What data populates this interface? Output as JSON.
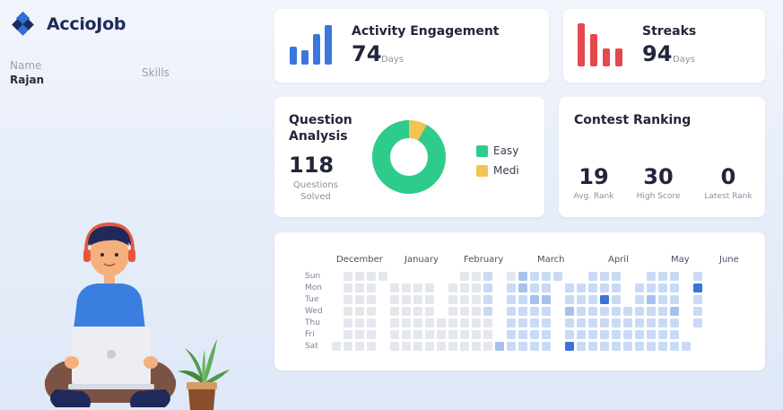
{
  "app": {
    "brand": "AccioJob"
  },
  "profile": {
    "name_label": "Name",
    "name_value": "Rajan",
    "skills_label": "Skills"
  },
  "activity": {
    "title": "Activity Engagement",
    "value": "74",
    "unit": "Days",
    "icon": "bar-chart-icon",
    "color": "#3b76dc"
  },
  "streaks": {
    "title": "Streaks",
    "value": "94",
    "unit": "Days",
    "icon": "bar-chart-icon",
    "color": "#e5484d"
  },
  "question_analysis": {
    "title_line1": "Question",
    "title_line2": "Analysis",
    "solved_value": "118",
    "solved_label_line1": "Questions",
    "solved_label_line2": "Solved",
    "legend": [
      {
        "label": "Easy",
        "color": "#2ecc8c"
      },
      {
        "label": "Medi",
        "color": "#f3c353"
      }
    ],
    "easy_fraction": 0.92
  },
  "contest": {
    "title": "Contest Ranking",
    "stats": [
      {
        "value": "19",
        "label": "Avg. Rank"
      },
      {
        "value": "30",
        "label": "High Score"
      },
      {
        "value": "0",
        "label": "Latest Rank"
      }
    ]
  },
  "heatmap": {
    "months": [
      "December",
      "January",
      "February",
      "March",
      "April",
      "May",
      "June"
    ],
    "days": [
      "Sun",
      "Mon",
      "Tue",
      "Wed",
      "Thu",
      "Fri",
      "Sat"
    ],
    "colors": {
      "empty": "#e4e7ec",
      "light": "#c9daf6",
      "mid": "#a6c1ee",
      "dark": "#3b73d9"
    },
    "columns": [
      [
        null,
        null,
        null,
        null,
        null,
        null,
        0
      ],
      [
        0,
        0,
        0,
        0,
        0,
        0,
        0
      ],
      [
        0,
        0,
        0,
        0,
        0,
        0,
        0
      ],
      [
        0,
        0,
        0,
        0,
        0,
        0,
        0
      ],
      [
        0,
        null,
        null,
        null,
        null,
        null,
        null
      ],
      [
        null,
        0,
        0,
        0,
        0,
        0,
        0
      ],
      [
        null,
        0,
        0,
        0,
        0,
        0,
        0
      ],
      [
        null,
        0,
        0,
        0,
        0,
        0,
        0
      ],
      [
        null,
        0,
        0,
        0,
        0,
        0,
        0
      ],
      [
        null,
        null,
        null,
        null,
        0,
        0,
        0
      ],
      [
        null,
        0,
        0,
        0,
        0,
        0,
        0
      ],
      [
        0,
        0,
        0,
        0,
        0,
        0,
        0
      ],
      [
        0,
        0,
        0,
        0,
        0,
        0,
        0
      ],
      [
        1,
        1,
        1,
        1,
        0,
        0,
        0
      ],
      [
        null,
        null,
        null,
        null,
        null,
        null,
        2
      ],
      [
        0,
        1,
        1,
        1,
        1,
        1,
        1
      ],
      [
        2,
        2,
        1,
        1,
        1,
        1,
        1
      ],
      [
        1,
        1,
        2,
        1,
        1,
        1,
        1
      ],
      [
        1,
        1,
        2,
        1,
        1,
        1,
        1
      ],
      [
        1,
        null,
        null,
        null,
        null,
        null,
        null
      ],
      [
        null,
        1,
        1,
        2,
        1,
        1,
        3
      ],
      [
        null,
        1,
        1,
        1,
        1,
        1,
        1
      ],
      [
        1,
        1,
        1,
        1,
        1,
        1,
        1
      ],
      [
        1,
        1,
        3,
        1,
        1,
        1,
        1
      ],
      [
        1,
        1,
        1,
        1,
        1,
        1,
        1
      ],
      [
        null,
        null,
        null,
        1,
        1,
        1,
        1
      ],
      [
        null,
        1,
        1,
        1,
        1,
        1,
        1
      ],
      [
        1,
        1,
        2,
        1,
        1,
        1,
        1
      ],
      [
        1,
        1,
        1,
        1,
        1,
        1,
        1
      ],
      [
        1,
        1,
        1,
        2,
        1,
        1,
        1
      ],
      [
        null,
        null,
        null,
        null,
        null,
        null,
        1
      ],
      [
        1,
        3,
        1,
        1,
        1,
        null,
        null
      ]
    ]
  },
  "illustration": {
    "person": "student-with-laptop",
    "plant": "potted-plant"
  }
}
